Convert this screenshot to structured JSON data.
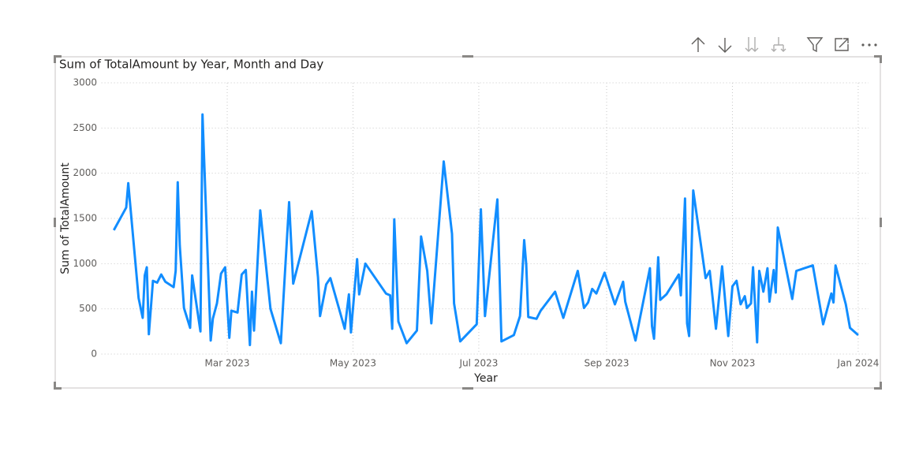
{
  "chart_data": {
    "type": "line",
    "title": "Sum of TotalAmount by Year, Month and Day",
    "x_label": "Year",
    "y_label": "Sum of TotalAmount",
    "color": "#118dff",
    "grid": true,
    "xlim": [
      -2,
      370
    ],
    "ylim": [
      0,
      3000
    ],
    "yticks": [
      0,
      500,
      1000,
      1500,
      2000,
      2500,
      3000
    ],
    "xticks": [
      {
        "value": 59,
        "label": "Mar 2023"
      },
      {
        "value": 120,
        "label": "May 2023"
      },
      {
        "value": 181,
        "label": "Jul 2023"
      },
      {
        "value": 243,
        "label": "Sep 2023"
      },
      {
        "value": 304,
        "label": "Nov 2023"
      },
      {
        "value": 365,
        "label": "Jan 2024"
      }
    ],
    "x": [
      4,
      10,
      11,
      16,
      18,
      19,
      20,
      21,
      23,
      25,
      27,
      29,
      33,
      34,
      35,
      36,
      38,
      41,
      42,
      46,
      47,
      51,
      52,
      54,
      56,
      58,
      60,
      61,
      64,
      66,
      68,
      70,
      71,
      72,
      75,
      80,
      85,
      89,
      91,
      100,
      103,
      104,
      107,
      109,
      111,
      116,
      118,
      119,
      122,
      123,
      126,
      136,
      138,
      139,
      140,
      142,
      146,
      151,
      153,
      156,
      158,
      164,
      168,
      169,
      172,
      180,
      182,
      184,
      190,
      192,
      198,
      201,
      203,
      204,
      205,
      209,
      211,
      218,
      222,
      229,
      232,
      234,
      236,
      238,
      242,
      247,
      251,
      252,
      257,
      264,
      265,
      266,
      268,
      269,
      272,
      278,
      279,
      281,
      282,
      283,
      285,
      291,
      293,
      296,
      299,
      302,
      304,
      306,
      308,
      310,
      311,
      313,
      314,
      316,
      317,
      319,
      321,
      322,
      324,
      325,
      326,
      333,
      335,
      343,
      348,
      352,
      353,
      354,
      359,
      361,
      365
    ],
    "values": [
      1370,
      1620,
      1890,
      620,
      400,
      870,
      960,
      220,
      810,
      790,
      880,
      800,
      740,
      920,
      1900,
      1200,
      510,
      290,
      870,
      250,
      2650,
      150,
      390,
      560,
      890,
      960,
      180,
      480,
      460,
      880,
      930,
      100,
      690,
      260,
      1590,
      500,
      120,
      1680,
      780,
      1580,
      850,
      420,
      770,
      840,
      680,
      280,
      660,
      240,
      1050,
      660,
      1000,
      670,
      650,
      280,
      1490,
      360,
      120,
      260,
      1300,
      920,
      340,
      2130,
      1330,
      560,
      140,
      330,
      1600,
      420,
      1710,
      140,
      210,
      420,
      1260,
      990,
      410,
      390,
      480,
      690,
      400,
      920,
      510,
      570,
      720,
      670,
      900,
      550,
      800,
      580,
      150,
      950,
      310,
      170,
      1070,
      600,
      660,
      880,
      650,
      1720,
      340,
      200,
      1810,
      840,
      920,
      280,
      970,
      200,
      750,
      810,
      550,
      640,
      510,
      560,
      960,
      130,
      920,
      690,
      950,
      580,
      930,
      680,
      1400,
      610,
      920,
      980,
      330,
      670,
      570,
      980,
      550,
      290,
      210
    ]
  }
}
